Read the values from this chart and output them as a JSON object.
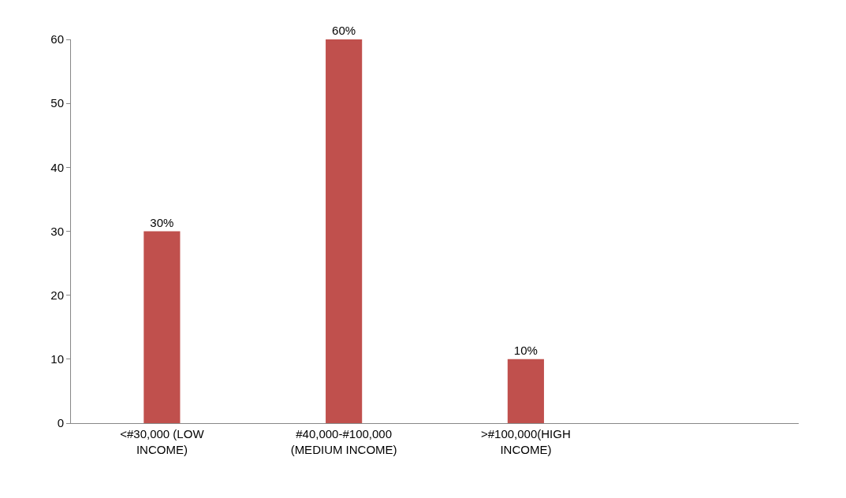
{
  "chart_data": {
    "type": "bar",
    "categories": [
      "<#30,000 (LOW INCOME)",
      "#40,000-#100,000 (MEDIUM INCOME)",
      ">#100,000(HIGH INCOME)",
      null
    ],
    "series": [
      {
        "color": "#c0504d",
        "values": [
          30,
          60,
          10,
          null
        ],
        "value_labels": [
          "30%",
          "60%",
          "10%",
          null
        ]
      }
    ],
    "ylim": [
      0,
      60
    ],
    "yticks": [
      0,
      10,
      20,
      30,
      40,
      50,
      60
    ],
    "legend": false
  }
}
